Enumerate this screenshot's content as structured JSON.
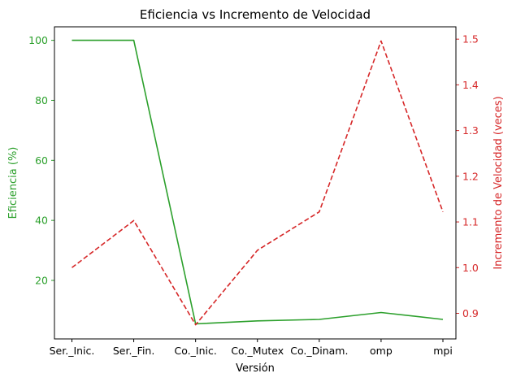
{
  "chart_data": {
    "type": "line",
    "title": "Eficiencia vs Incremento de Velocidad",
    "xlabel": "Versión",
    "categories": [
      "Ser._Inic.",
      "Ser._Fin.",
      "Co._Inic.",
      "Co._Mutex",
      "Co._Dinam.",
      "omp",
      "mpi"
    ],
    "grid": false,
    "legend": "none",
    "series": [
      {
        "ylabel": "Eficiencia (%)",
        "axis": "left",
        "color": "#2ca02c",
        "linestyle": "solid",
        "values": [
          100,
          100,
          5.5,
          6.5,
          7,
          9.3,
          7
        ],
        "ylim": [
          0.5,
          104.5
        ],
        "yticks": [
          20,
          40,
          60,
          80,
          100
        ]
      },
      {
        "ylabel": "Incremento de Velocidad (veces)",
        "axis": "right",
        "color": "#d62728",
        "linestyle": "dashed",
        "values": [
          1.0,
          1.103,
          0.875,
          1.038,
          1.122,
          1.496,
          1.122
        ],
        "ylim": [
          0.844,
          1.527
        ],
        "yticks": [
          0.9,
          1.0,
          1.1,
          1.2,
          1.3,
          1.4,
          1.5
        ],
        "yticklabels": [
          "0.9",
          "1.0",
          "1.1",
          "1.2",
          "1.3",
          "1.4",
          "1.5"
        ]
      }
    ]
  }
}
